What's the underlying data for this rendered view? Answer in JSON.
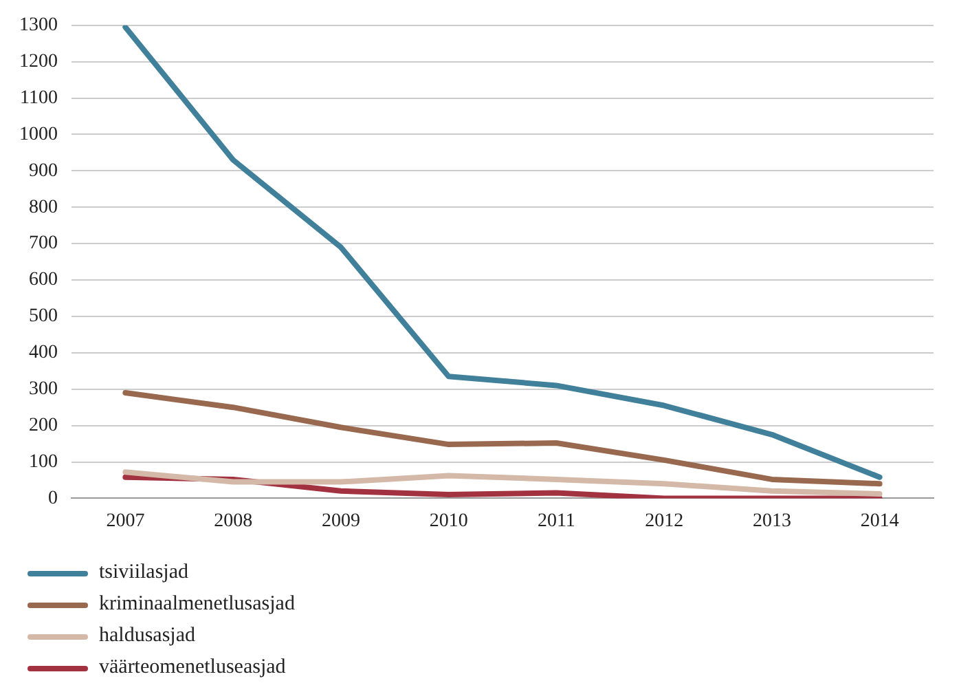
{
  "chart_data": {
    "type": "line",
    "categories": [
      "2007",
      "2008",
      "2009",
      "2010",
      "2011",
      "2012",
      "2013",
      "2014"
    ],
    "series": [
      {
        "name": "tsiviilasjad",
        "color": "#41809b",
        "values": [
          1295,
          930,
          690,
          335,
          310,
          255,
          175,
          58
        ]
      },
      {
        "name": "kriminaalmenetlusasjad",
        "color": "#98694f",
        "values": [
          290,
          250,
          195,
          148,
          152,
          105,
          52,
          40
        ]
      },
      {
        "name": "haldusasjad",
        "color": "#d4b9a8",
        "values": [
          72,
          45,
          45,
          62,
          52,
          40,
          20,
          12
        ]
      },
      {
        "name": "väärteomenetluseasjad",
        "color": "#a33240",
        "values": [
          58,
          52,
          20,
          10,
          15,
          0,
          0,
          0
        ]
      }
    ],
    "ylim": [
      0,
      1300
    ],
    "yticks": [
      0,
      100,
      200,
      300,
      400,
      500,
      600,
      700,
      800,
      900,
      1000,
      1100,
      1200,
      1300
    ],
    "grid": "y",
    "legend": "bottom",
    "marker": "none",
    "line_style": "solid"
  }
}
